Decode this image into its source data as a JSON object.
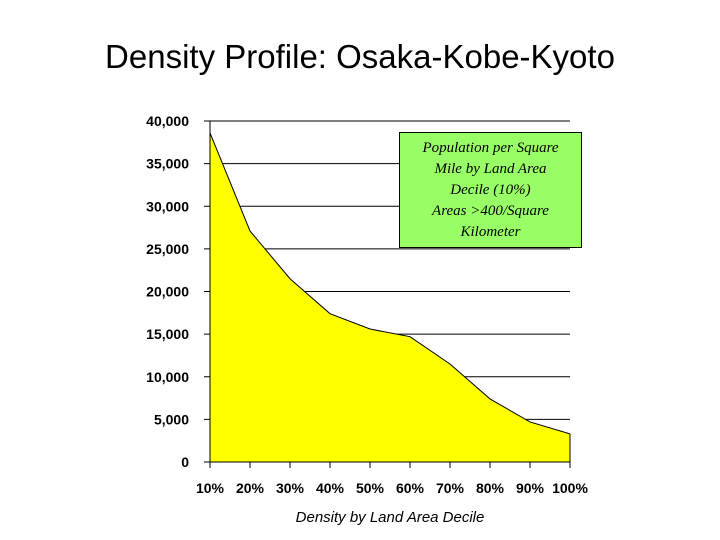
{
  "chart_data": {
    "type": "area",
    "title": "Density Profile: Osaka-Kobe-Kyoto",
    "xlabel": "Density by Land Area Decile",
    "ylabel": "",
    "categories": [
      "10%",
      "20%",
      "30%",
      "40%",
      "50%",
      "60%",
      "70%",
      "80%",
      "90%",
      "100%"
    ],
    "values": [
      38600,
      27100,
      21500,
      17400,
      15600,
      14700,
      11500,
      7400,
      4700,
      3300
    ],
    "ylim": [
      0,
      40000
    ],
    "yticks": [
      "0",
      "5,000",
      "10,000",
      "15,000",
      "20,000",
      "25,000",
      "30,000",
      "35,000",
      "40,000"
    ],
    "ytick_values": [
      0,
      5000,
      10000,
      15000,
      20000,
      25000,
      30000,
      35000,
      40000
    ],
    "grid": true,
    "fill_color": "#ffff00",
    "annotation_color": "#99ff66",
    "annotation_lines": [
      "Population per Square",
      "Mile  by Land Area",
      "Decile (10%)",
      "Areas >400/Square",
      "Kilometer"
    ]
  }
}
